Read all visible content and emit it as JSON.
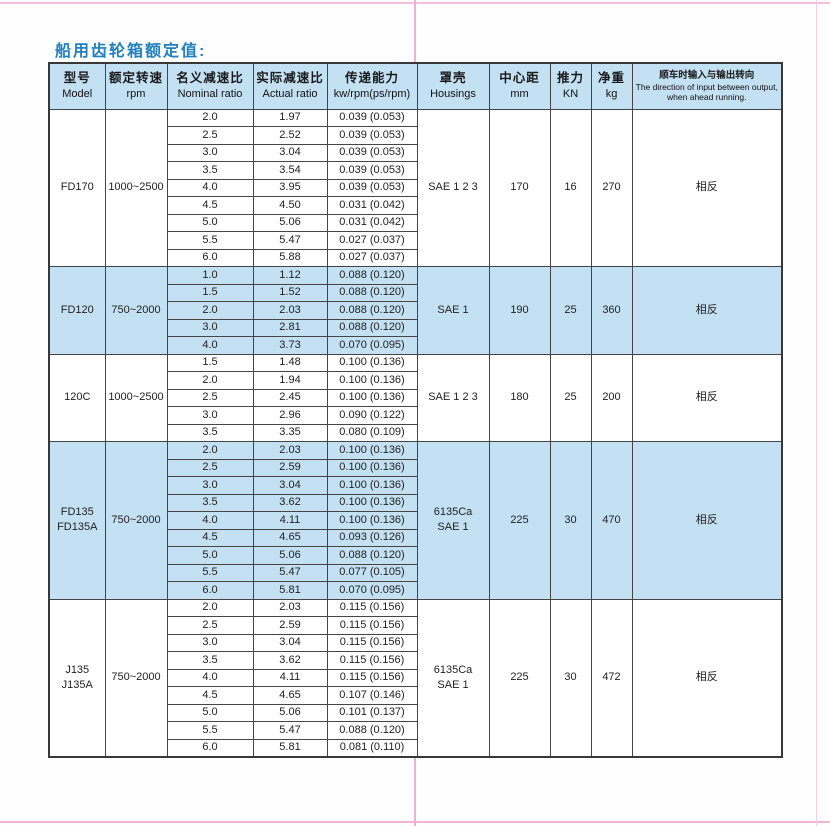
{
  "page": {
    "title": "船用齿轮箱额定值:"
  },
  "colors": {
    "header_fill": "#c3e1f3",
    "group_highlight_fill": "#c3e1f3",
    "title_blue": "#2080c0",
    "fold_line_pink": "#f2aed4",
    "table_border": "#454545"
  },
  "table": {
    "headers": [
      {
        "zh": "型号",
        "en": "Model"
      },
      {
        "zh": "额定转速",
        "en": "rpm"
      },
      {
        "zh": "名义减速比",
        "en": "Nominal ratio"
      },
      {
        "zh": "实际减速比",
        "en": "Actual ratio"
      },
      {
        "zh": "传递能力",
        "en": "kw/rpm(ps/rpm)"
      },
      {
        "zh": "罩壳",
        "en": "Housings"
      },
      {
        "zh": "中心距",
        "en": "mm"
      },
      {
        "zh": "推力",
        "en": "KN"
      },
      {
        "zh": "净重",
        "en": "kg"
      },
      {
        "zh": "顺车时输入与输出转向",
        "en": "The direction of input between output, when ahead running."
      }
    ],
    "groups": [
      {
        "model_lines": [
          "FD170"
        ],
        "rpm": "1000~2500",
        "housings_lines": [
          "SAE 1 2 3"
        ],
        "center_distance_mm": "170",
        "thrust_kn": "16",
        "net_weight_kg": "270",
        "direction": "相反",
        "highlight": false,
        "rows": [
          [
            "2.0",
            "1.97",
            "0.039 (0.053)"
          ],
          [
            "2.5",
            "2.52",
            "0.039 (0.053)"
          ],
          [
            "3.0",
            "3.04",
            "0.039 (0.053)"
          ],
          [
            "3.5",
            "3.54",
            "0.039 (0.053)"
          ],
          [
            "4.0",
            "3.95",
            "0.039 (0.053)"
          ],
          [
            "4.5",
            "4.50",
            "0.031 (0.042)"
          ],
          [
            "5.0",
            "5.06",
            "0.031 (0.042)"
          ],
          [
            "5.5",
            "5.47",
            "0.027 (0.037)"
          ],
          [
            "6.0",
            "5.88",
            "0.027 (0.037)"
          ]
        ]
      },
      {
        "model_lines": [
          "FD120"
        ],
        "rpm": "750~2000",
        "housings_lines": [
          "SAE 1"
        ],
        "center_distance_mm": "190",
        "thrust_kn": "25",
        "net_weight_kg": "360",
        "direction": "相反",
        "highlight": true,
        "rows": [
          [
            "1.0",
            "1.12",
            "0.088 (0.120)"
          ],
          [
            "1.5",
            "1.52",
            "0.088 (0.120)"
          ],
          [
            "2.0",
            "2.03",
            "0.088 (0.120)"
          ],
          [
            "3.0",
            "2.81",
            "0.088 (0.120)"
          ],
          [
            "4.0",
            "3.73",
            "0.070 (0.095)"
          ]
        ]
      },
      {
        "model_lines": [
          "120C"
        ],
        "rpm": "1000~2500",
        "housings_lines": [
          "SAE 1 2 3"
        ],
        "center_distance_mm": "180",
        "thrust_kn": "25",
        "net_weight_kg": "200",
        "direction": "相反",
        "highlight": false,
        "rows": [
          [
            "1.5",
            "1.48",
            "0.100 (0.136)"
          ],
          [
            "2.0",
            "1.94",
            "0.100 (0.136)"
          ],
          [
            "2.5",
            "2.45",
            "0.100 (0.136)"
          ],
          [
            "3.0",
            "2.96",
            "0.090 (0.122)"
          ],
          [
            "3.5",
            "3.35",
            "0.080 (0.109)"
          ]
        ]
      },
      {
        "model_lines": [
          "FD135",
          "FD135A"
        ],
        "rpm": "750~2000",
        "housings_lines": [
          "6135Ca",
          "SAE 1"
        ],
        "center_distance_mm": "225",
        "thrust_kn": "30",
        "net_weight_kg": "470",
        "direction": "相反",
        "highlight": true,
        "rows": [
          [
            "2.0",
            "2.03",
            "0.100 (0.136)"
          ],
          [
            "2.5",
            "2.59",
            "0.100 (0.136)"
          ],
          [
            "3.0",
            "3.04",
            "0.100 (0.136)"
          ],
          [
            "3.5",
            "3.62",
            "0.100 (0.136)"
          ],
          [
            "4.0",
            "4.11",
            "0.100 (0.136)"
          ],
          [
            "4.5",
            "4.65",
            "0.093 (0.126)"
          ],
          [
            "5.0",
            "5.06",
            "0.088 (0.120)"
          ],
          [
            "5.5",
            "5.47",
            "0.077 (0.105)"
          ],
          [
            "6.0",
            "5.81",
            "0.070 (0.095)"
          ]
        ]
      },
      {
        "model_lines": [
          "J135",
          "J135A"
        ],
        "rpm": "750~2000",
        "housings_lines": [
          "6135Ca",
          "SAE 1"
        ],
        "center_distance_mm": "225",
        "thrust_kn": "30",
        "net_weight_kg": "472",
        "direction": "相反",
        "highlight": false,
        "rows": [
          [
            "2.0",
            "2.03",
            "0.115 (0.156)"
          ],
          [
            "2.5",
            "2.59",
            "0.115 (0.156)"
          ],
          [
            "3.0",
            "3.04",
            "0.115 (0.156)"
          ],
          [
            "3.5",
            "3.62",
            "0.115 (0.156)"
          ],
          [
            "4.0",
            "4.11",
            "0.115 (0.156)"
          ],
          [
            "4.5",
            "4.65",
            "0.107 (0.146)"
          ],
          [
            "5.0",
            "5.06",
            "0.101 (0.137)"
          ],
          [
            "5.5",
            "5.47",
            "0.088 (0.120)"
          ],
          [
            "6.0",
            "5.81",
            "0.081 (0.110)"
          ]
        ]
      }
    ]
  }
}
